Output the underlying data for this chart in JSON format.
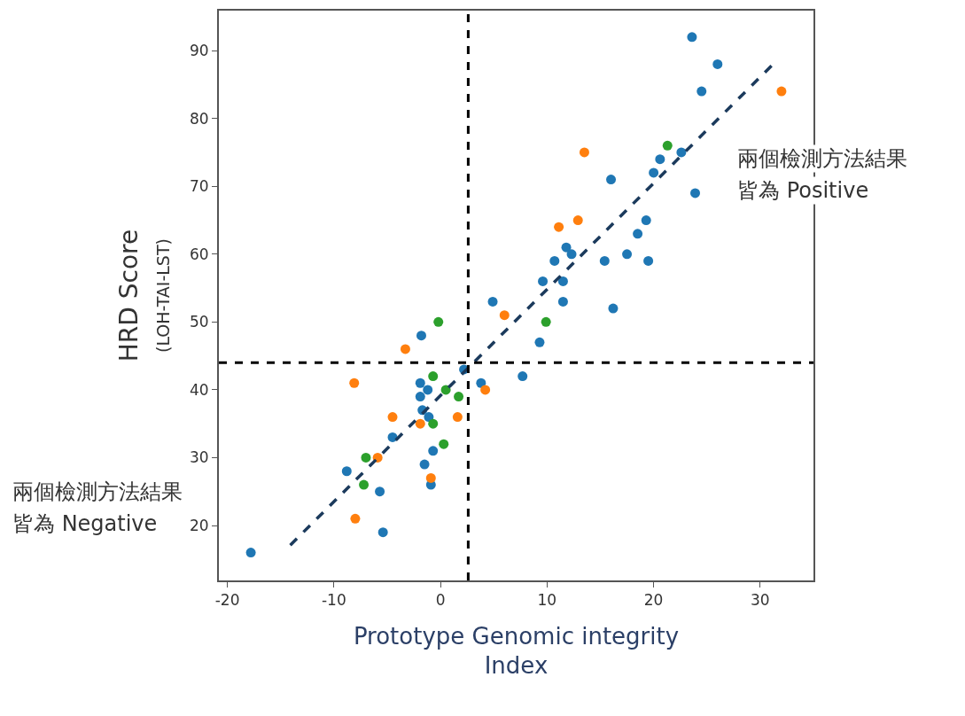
{
  "chart_data": {
    "type": "scatter",
    "xlabel": "Prototype Genomic integrity\nIndex",
    "ylabel": "HRD Score\n(LOH-TAI-LST)",
    "xlim": [
      -20.8,
      35
    ],
    "ylim": [
      11.9,
      95.9
    ],
    "xticks": [
      -20,
      -10,
      0,
      10,
      20,
      30
    ],
    "yticks": [
      20,
      30,
      40,
      50,
      60,
      70,
      80,
      90
    ],
    "grid": false,
    "marker": "circle",
    "annotations": [
      "兩個檢測方法結果",
      "皆為 Positive",
      "兩個檢測方法結果",
      "皆為 Negative"
    ],
    "ref_lines": [
      {
        "axis": "x",
        "value": 2.6,
        "color": "#000000",
        "line_style": "dashed"
      },
      {
        "axis": "y",
        "value": 44,
        "color": "#000000",
        "line_style": "dashed"
      }
    ],
    "series": [
      {
        "color": "#1f77b4",
        "x": [
          23.6,
          26.0,
          24.5,
          22.6,
          20.6,
          20.0,
          23.9,
          16.0,
          11.8,
          12.3,
          10.7,
          15.4,
          17.5,
          19.5,
          19.3,
          18.5,
          9.6,
          11.5,
          11.5,
          4.9,
          16.2,
          9.3,
          7.7,
          3.8,
          2.2,
          -1.8,
          -1.9,
          -1.2,
          -1.9,
          -1.7,
          -1.1,
          -4.5,
          -0.7,
          -1.5,
          -0.9,
          -8.8,
          -5.7,
          -5.4,
          -17.8
        ],
        "values": [
          92,
          88,
          84,
          75,
          74,
          72,
          69,
          71,
          61,
          60,
          59,
          59,
          60,
          59,
          65,
          63,
          56,
          56,
          53,
          53,
          52,
          47,
          42,
          41,
          43,
          48,
          41,
          40,
          39,
          37,
          36,
          33,
          31,
          29,
          26,
          28,
          25,
          19,
          16
        ]
      },
      {
        "color": "#ff7f0e",
        "x": [
          32.0,
          13.5,
          12.9,
          11.1,
          6.0,
          -3.3,
          -8.1,
          4.2,
          -4.5,
          1.6,
          -1.9,
          -5.9,
          -0.9,
          -8.0
        ],
        "values": [
          84,
          75,
          65,
          64,
          51,
          46,
          41,
          40,
          36,
          36,
          35,
          30,
          27,
          21
        ]
      },
      {
        "color": "#2ca02c",
        "x": [
          21.3,
          9.9,
          -0.2,
          -0.7,
          0.5,
          1.7,
          -0.7,
          0.3,
          -7.0,
          -7.2
        ],
        "values": [
          76,
          50,
          50,
          42,
          40,
          39,
          35,
          32,
          30,
          26
        ]
      },
      {
        "type": "line",
        "color": "#1b3a5c",
        "line_style": "dashed",
        "marker": "none",
        "x": [
          -14.1,
          31.4
        ],
        "values": [
          17.1,
          88.3
        ]
      }
    ]
  }
}
